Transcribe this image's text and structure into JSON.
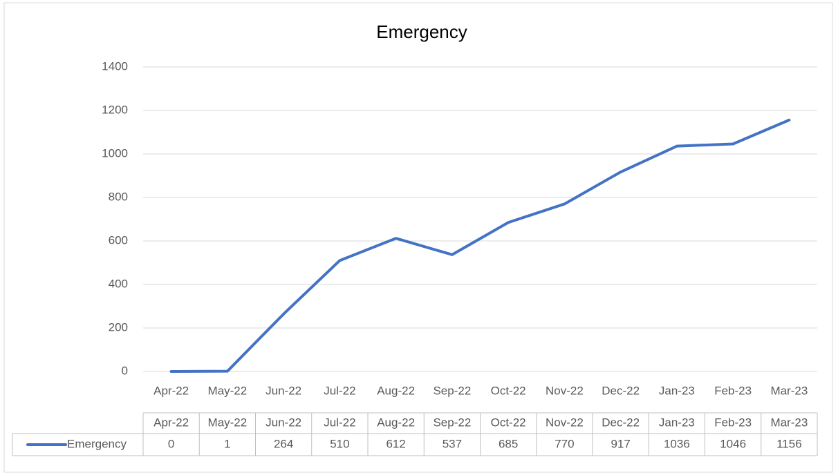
{
  "chart_data": {
    "type": "line",
    "title": "Emergency",
    "categories": [
      "Apr-22",
      "May-22",
      "Jun-22",
      "Jul-22",
      "Aug-22",
      "Sep-22",
      "Oct-22",
      "Nov-22",
      "Dec-22",
      "Jan-23",
      "Feb-23",
      "Mar-23"
    ],
    "series": [
      {
        "name": "Emergency",
        "color": "#4472c4",
        "values": [
          0,
          1,
          264,
          510,
          612,
          537,
          685,
          770,
          917,
          1036,
          1046,
          1156
        ]
      }
    ],
    "ylim": [
      0,
      1400
    ],
    "yticks": [
      0,
      200,
      400,
      600,
      800,
      1000,
      1200,
      1400
    ],
    "grid": true,
    "data_table": true
  }
}
